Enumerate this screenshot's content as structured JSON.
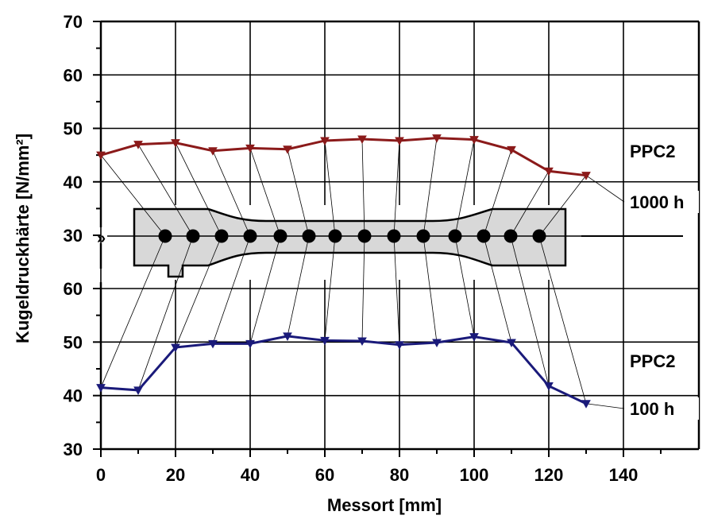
{
  "chart_data": {
    "type": "line",
    "xlabel": "Messort [mm]",
    "ylabel": "Kugeldruckhärte  [N/mm²]",
    "x_ticks": [
      "0",
      "20",
      "40",
      "60",
      "80",
      "100",
      "120",
      "140"
    ],
    "xlim": [
      0,
      160
    ],
    "grid": true,
    "panels": [
      {
        "ylim": [
          30,
          70
        ],
        "y_ticks": [
          "30",
          "40",
          "50",
          "60",
          "70"
        ],
        "series": [
          {
            "name": "1000 h",
            "label_lines": [
              "PPC2",
              "1000 h"
            ],
            "color": "#8b1a1a",
            "x": [
              0,
              10,
              20,
              30,
              40,
              50,
              60,
              70,
              80,
              90,
              100,
              110,
              120,
              130
            ],
            "y": [
              45.0,
              47.0,
              47.3,
              45.8,
              46.3,
              46.1,
              47.7,
              48.0,
              47.7,
              48.2,
              47.9,
              46.0,
              42.0,
              41.2
            ]
          }
        ]
      },
      {
        "ylim": [
          30,
          65
        ],
        "y_ticks": [
          "30",
          "40",
          "50",
          "60"
        ],
        "series": [
          {
            "name": "100 h",
            "label_lines": [
              "PPC2",
              "100 h"
            ],
            "color": "#1a1a7a",
            "x": [
              0,
              10,
              20,
              30,
              40,
              50,
              60,
              70,
              80,
              90,
              100,
              110,
              120,
              130
            ],
            "y": [
              41.5,
              41.0,
              49.0,
              49.7,
              49.7,
              51.1,
              50.3,
              50.2,
              49.5,
              49.9,
              51.0,
              49.9,
              41.8,
              38.5
            ]
          }
        ]
      }
    ],
    "break_mark": "»",
    "specimen_points": 14
  }
}
